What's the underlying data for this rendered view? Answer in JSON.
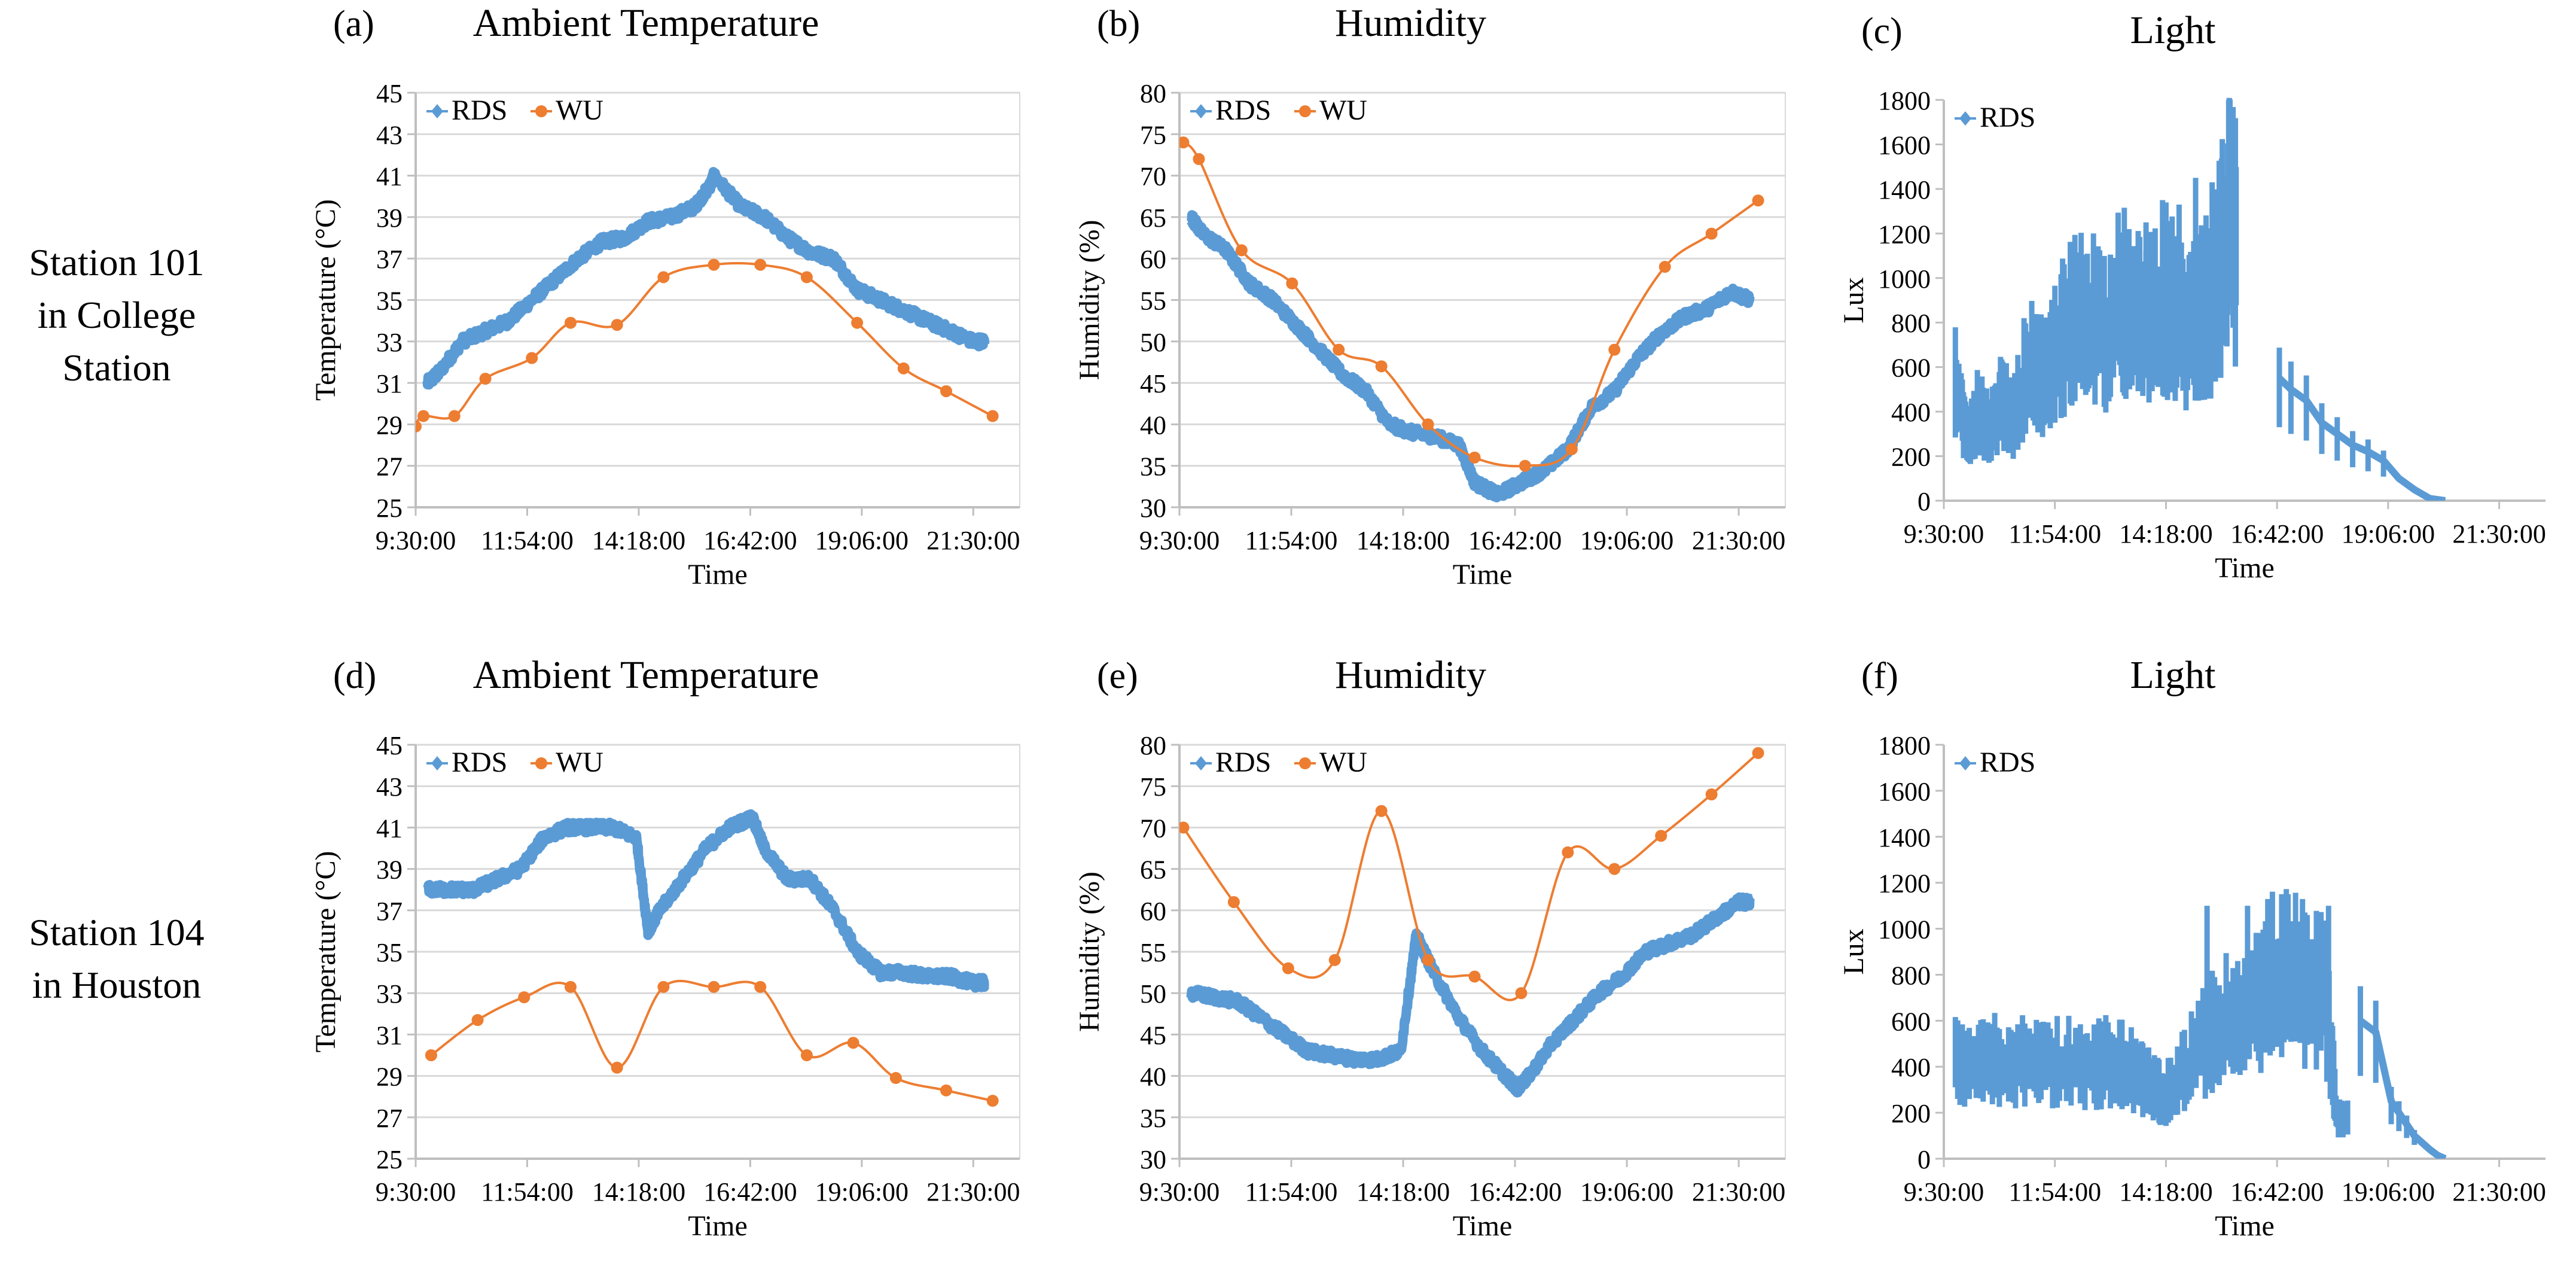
{
  "row_labels": {
    "row1": [
      "Station 101",
      "in College",
      "Station"
    ],
    "row2": [
      "Station 104",
      "in Houston"
    ]
  },
  "colors": {
    "RDS": "#5b9bd5",
    "WU": "#ed7d31",
    "gridline": "#d9d9d9",
    "axis": "#bfbfbf"
  },
  "chart_data": [
    {
      "panel": "(a)",
      "type": "line",
      "title": "Ambient Temperature",
      "xlabel": "Time",
      "ylabel": "Temperature (°C)",
      "xticks": [
        "9:30:00",
        "11:54:00",
        "14:18:00",
        "16:42:00",
        "19:06:00",
        "21:30:00"
      ],
      "xlim": [
        "9:30:00",
        "22:30:00"
      ],
      "ylim": [
        25,
        45
      ],
      "ystep": 2,
      "legend": "top-left",
      "grid": "horizontal",
      "series": [
        {
          "name": "RDS",
          "color": "#5b9bd5",
          "style": "dense",
          "x": [
            "9:45",
            "10:00",
            "10:30",
            "11:00",
            "11:30",
            "12:00",
            "12:30",
            "13:00",
            "13:30",
            "14:00",
            "14:30",
            "15:00",
            "15:30",
            "15:50",
            "15:55",
            "16:30",
            "17:00",
            "17:30",
            "18:00",
            "18:30",
            "19:00",
            "19:30",
            "20:00",
            "20:30",
            "21:00",
            "21:30",
            "21:45"
          ],
          "y": [
            31.0,
            31.5,
            33.0,
            33.5,
            34.0,
            35.0,
            36.0,
            37.0,
            37.8,
            38.0,
            38.8,
            39.0,
            39.5,
            40.5,
            41.0,
            39.5,
            39.0,
            38.0,
            37.3,
            37.0,
            35.5,
            35.0,
            34.5,
            34.0,
            33.5,
            33.0,
            33.0
          ]
        },
        {
          "name": "WU",
          "color": "#ed7d31",
          "style": "markers",
          "x": [
            "9:30",
            "9:40",
            "10:20",
            "11:00",
            "12:00",
            "12:50",
            "13:50",
            "14:50",
            "15:55",
            "16:55",
            "17:55",
            "19:00",
            "20:00",
            "20:55",
            "21:55"
          ],
          "y": [
            28.9,
            29.4,
            29.4,
            31.2,
            32.2,
            33.9,
            33.8,
            36.1,
            36.7,
            36.7,
            36.1,
            33.9,
            31.7,
            30.6,
            29.4
          ]
        }
      ]
    },
    {
      "panel": "(b)",
      "type": "line",
      "title": "Humidity",
      "xlabel": "Time",
      "ylabel": "Humidity (%)",
      "xticks": [
        "9:30:00",
        "11:54:00",
        "14:18:00",
        "16:42:00",
        "19:06:00",
        "21:30:00"
      ],
      "xlim": [
        "9:30:00",
        "22:30:00"
      ],
      "ylim": [
        30,
        80
      ],
      "ystep": 5,
      "legend": "top-left",
      "grid": "horizontal",
      "series": [
        {
          "name": "RDS",
          "color": "#5b9bd5",
          "style": "dense",
          "x": [
            "9:45",
            "10:00",
            "10:30",
            "11:00",
            "11:30",
            "12:00",
            "12:30",
            "13:00",
            "13:30",
            "14:00",
            "14:30",
            "15:00",
            "15:30",
            "15:50",
            "16:20",
            "16:50",
            "17:20",
            "17:50",
            "18:20",
            "18:50",
            "19:20",
            "19:50",
            "20:20",
            "20:50",
            "21:20",
            "21:45"
          ],
          "y": [
            65,
            63,
            61,
            57,
            55,
            52,
            49,
            46,
            44,
            40,
            39,
            38.5,
            37.5,
            33,
            31.5,
            33,
            34.5,
            37,
            42,
            44,
            48,
            51,
            53,
            54,
            56,
            55
          ]
        },
        {
          "name": "WU",
          "color": "#ed7d31",
          "style": "markers",
          "x": [
            "9:35",
            "9:55",
            "10:50",
            "11:55",
            "12:55",
            "13:50",
            "14:50",
            "15:50",
            "16:55",
            "17:55",
            "18:50",
            "19:55",
            "20:55",
            "21:55"
          ],
          "y": [
            74,
            72,
            61,
            57,
            49,
            47,
            40,
            36,
            35,
            37,
            49,
            59,
            63,
            67
          ]
        }
      ]
    },
    {
      "panel": "(c)",
      "type": "line",
      "title": "Light",
      "xlabel": "Time",
      "ylabel": "Lux",
      "xticks": [
        "9:30:00",
        "11:54:00",
        "14:18:00",
        "16:42:00",
        "19:06:00",
        "21:30:00"
      ],
      "xlim": [
        "9:30:00",
        "22:30:00"
      ],
      "ylim": [
        0,
        1800
      ],
      "ystep": 200,
      "legend": "top-left",
      "grid": "none",
      "series": [
        {
          "name": "RDS",
          "color": "#5b9bd5",
          "style": "spiky",
          "x": [
            "9:45",
            "10:00",
            "10:15",
            "10:30",
            "10:45",
            "11:00",
            "11:20",
            "11:40",
            "12:00",
            "12:20",
            "12:40",
            "13:00",
            "13:20",
            "13:40",
            "14:00",
            "14:20",
            "14:40",
            "15:00",
            "15:20",
            "15:30",
            "15:40",
            "15:50"
          ],
          "y": [
            600,
            300,
            450,
            350,
            500,
            400,
            700,
            600,
            800,
            900,
            950,
            850,
            1000,
            900,
            950,
            1000,
            850,
            900,
            1000,
            1200,
            1400,
            1300
          ],
          "peaks": [
            1000,
            1250,
            1350,
            1330,
            1450,
            1430,
            1800
          ],
          "x2": [
            "16:45",
            "17:00",
            "17:20",
            "17:40",
            "18:00",
            "18:20",
            "18:40",
            "19:00",
            "19:20",
            "19:40",
            "20:00",
            "20:20"
          ],
          "y2": [
            550,
            500,
            450,
            350,
            300,
            250,
            220,
            180,
            100,
            50,
            10,
            0
          ]
        }
      ]
    },
    {
      "panel": "(d)",
      "type": "line",
      "title": "Ambient Temperature",
      "xlabel": "Time",
      "ylabel": "Temperature (°C)",
      "xticks": [
        "9:30:00",
        "11:54:00",
        "14:18:00",
        "16:42:00",
        "19:06:00",
        "21:30:00"
      ],
      "xlim": [
        "9:30:00",
        "22:30:00"
      ],
      "ylim": [
        25,
        45
      ],
      "ystep": 2,
      "legend": "top-left",
      "grid": "horizontal",
      "series": [
        {
          "name": "RDS",
          "color": "#5b9bd5",
          "style": "dense",
          "x": [
            "9:45",
            "10:15",
            "10:45",
            "11:15",
            "11:45",
            "12:15",
            "12:45",
            "13:15",
            "13:45",
            "14:15",
            "14:30",
            "14:45",
            "15:15",
            "15:45",
            "16:15",
            "16:45",
            "17:00",
            "17:30",
            "18:00",
            "18:30",
            "19:00",
            "19:30",
            "20:00",
            "20:30",
            "21:00",
            "21:30",
            "21:45"
          ],
          "y": [
            38,
            38,
            38,
            38.5,
            39,
            40.5,
            41,
            41,
            41,
            40.5,
            36,
            37,
            38.5,
            40,
            41,
            41.5,
            40,
            38.5,
            38.5,
            37,
            35,
            34,
            34,
            33.8,
            33.8,
            33.5,
            33.5
          ]
        },
        {
          "name": "WU",
          "color": "#ed7d31",
          "style": "markers",
          "x": [
            "9:50",
            "10:50",
            "11:50",
            "12:50",
            "13:50",
            "14:50",
            "15:55",
            "16:55",
            "17:55",
            "18:55",
            "19:50",
            "20:55",
            "21:55"
          ],
          "y": [
            30.0,
            31.7,
            32.8,
            33.3,
            29.4,
            33.3,
            33.3,
            33.3,
            30.0,
            30.6,
            28.9,
            28.3,
            27.8
          ]
        }
      ]
    },
    {
      "panel": "(e)",
      "type": "line",
      "title": "Humidity",
      "xlabel": "Time",
      "ylabel": "Humidity (%)",
      "xticks": [
        "9:30:00",
        "11:54:00",
        "14:18:00",
        "16:42:00",
        "19:06:00",
        "21:30:00"
      ],
      "xlim": [
        "9:30:00",
        "22:30:00"
      ],
      "ylim": [
        30,
        80
      ],
      "ystep": 5,
      "legend": "top-left",
      "grid": "horizontal",
      "series": [
        {
          "name": "RDS",
          "color": "#5b9bd5",
          "style": "dense",
          "x": [
            "9:45",
            "10:15",
            "10:45",
            "11:15",
            "11:45",
            "12:15",
            "12:45",
            "13:15",
            "13:45",
            "14:15",
            "14:35",
            "15:00",
            "15:30",
            "16:00",
            "16:30",
            "16:45",
            "17:00",
            "17:30",
            "18:00",
            "18:30",
            "19:00",
            "19:30",
            "20:00",
            "20:30",
            "21:00",
            "21:30",
            "21:45"
          ],
          "y": [
            50,
            49.5,
            49,
            47,
            45,
            43,
            42.5,
            42,
            42,
            43,
            57,
            52,
            47,
            43,
            40,
            38.5,
            40,
            44,
            47,
            50,
            52,
            55,
            56,
            57,
            59,
            61,
            61
          ]
        },
        {
          "name": "WU",
          "color": "#ed7d31",
          "style": "markers",
          "x": [
            "9:35",
            "10:40",
            "11:50",
            "12:50",
            "13:50",
            "14:50",
            "15:50",
            "16:50",
            "17:50",
            "18:50",
            "19:50",
            "20:55",
            "21:55"
          ],
          "y": [
            70,
            61,
            53,
            54,
            72,
            54,
            52,
            50,
            67,
            65,
            69,
            74,
            79
          ]
        }
      ]
    },
    {
      "panel": "(f)",
      "type": "line",
      "title": "Light",
      "xlabel": "Time",
      "ylabel": "Lux",
      "xticks": [
        "9:30:00",
        "11:54:00",
        "14:18:00",
        "16:42:00",
        "19:06:00",
        "21:30:00"
      ],
      "xlim": [
        "9:30:00",
        "22:30:00"
      ],
      "ylim": [
        0,
        1800
      ],
      "ystep": 200,
      "legend": "top-left",
      "grid": "none",
      "series": [
        {
          "name": "RDS",
          "color": "#5b9bd5",
          "style": "spiky",
          "x": [
            "9:45",
            "10:15",
            "10:45",
            "11:15",
            "11:45",
            "12:15",
            "12:45",
            "13:15",
            "13:45",
            "14:00",
            "14:15",
            "14:45",
            "15:15",
            "15:45",
            "16:15",
            "16:45",
            "17:15",
            "17:45",
            "18:00",
            "18:15"
          ],
          "y": [
            500,
            450,
            480,
            470,
            480,
            470,
            460,
            480,
            400,
            350,
            300,
            450,
            600,
            700,
            800,
            900,
            850,
            800,
            200,
            200
          ],
          "peaks": [
            1100,
            1100,
            1150,
            1100
          ],
          "x2": [
            "18:30",
            "18:50",
            "19:10",
            "19:20",
            "19:30",
            "19:40",
            "19:50",
            "20:00",
            "20:10",
            "20:20"
          ],
          "y2": [
            600,
            550,
            250,
            200,
            150,
            100,
            70,
            40,
            15,
            0
          ]
        }
      ]
    }
  ]
}
